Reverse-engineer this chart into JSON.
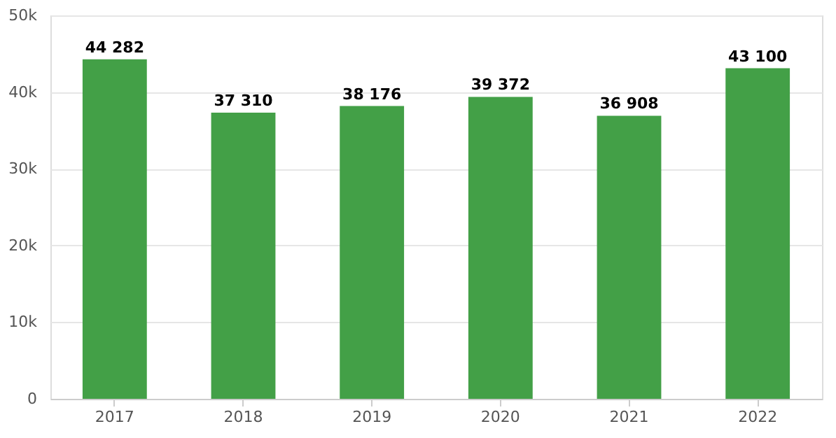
{
  "chart_data": {
    "type": "bar",
    "categories": [
      "2017",
      "2018",
      "2019",
      "2020",
      "2021",
      "2022"
    ],
    "values": [
      44282,
      37310,
      38176,
      39372,
      36908,
      43100
    ],
    "value_labels": [
      "44 282",
      "37 310",
      "38 176",
      "39 372",
      "36 908",
      "43 100"
    ],
    "color": "#43a047",
    "ylim": [
      0,
      50000
    ],
    "yticks": [
      {
        "value": 0,
        "label": "0"
      },
      {
        "value": 10000,
        "label": "10k"
      },
      {
        "value": 20000,
        "label": "20k"
      },
      {
        "value": 30000,
        "label": "30k"
      },
      {
        "value": 40000,
        "label": "40k"
      },
      {
        "value": 50000,
        "label": "50k"
      }
    ],
    "grid": "y"
  }
}
